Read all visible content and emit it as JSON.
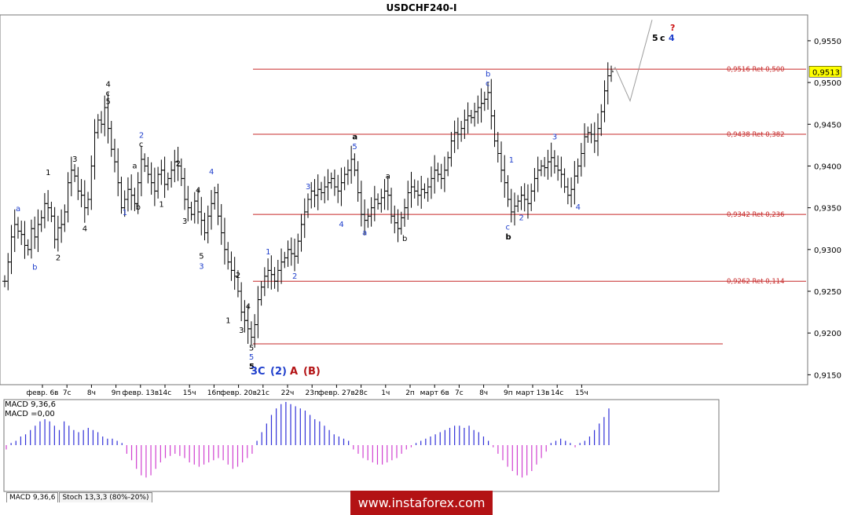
{
  "window": {
    "title": "USDCHF240-I"
  },
  "price_axis": {
    "ticks": [
      "0,9550",
      "0,9500",
      "0,9450",
      "0,9400",
      "0,9350",
      "0,9300",
      "0,9250",
      "0,9200",
      "0,9150"
    ],
    "current_price": "0,9513"
  },
  "time_axis": {
    "labels": [
      "февр. 6в",
      "7с",
      "8ч",
      "9п",
      "февр. 13в",
      "14с",
      "15ч",
      "16п",
      "февр. 20в",
      "21с",
      "22ч",
      "23п",
      "февр. 27в",
      "28с",
      "1ч",
      "2п",
      "март 6в",
      "7с",
      "8ч",
      "9п",
      "март 13в",
      "14с",
      "15ч"
    ]
  },
  "fib_levels": [
    {
      "label": "0,9516 Ret 0,500",
      "price": 0.9516
    },
    {
      "label": "0,9438 Ret 0,382",
      "price": 0.9438
    },
    {
      "label": "0,9342 Ret 0,236",
      "price": 0.9342
    },
    {
      "label": "0,9262 Ret 0,114",
      "price": 0.9262
    }
  ],
  "base_line": {
    "price": 0.9187
  },
  "wave_labels": [
    {
      "text": "a",
      "bar": 4,
      "price": 0.9346,
      "color": "#1f3fcc"
    },
    {
      "text": "b",
      "bar": 9,
      "price": 0.9276,
      "color": "#1f3fcc"
    },
    {
      "text": "1",
      "bar": 13,
      "price": 0.9389,
      "color": "#000"
    },
    {
      "text": "2",
      "bar": 16,
      "price": 0.9287,
      "color": "#000"
    },
    {
      "text": "3",
      "bar": 21,
      "price": 0.9405,
      "color": "#000"
    },
    {
      "text": "4",
      "bar": 24,
      "price": 0.9322,
      "color": "#000"
    },
    {
      "text": "4",
      "bar": 31,
      "price": 0.9495,
      "color": "#000"
    },
    {
      "text": "c",
      "bar": 31,
      "price": 0.9484,
      "color": "#000"
    },
    {
      "text": "5",
      "bar": 31,
      "price": 0.9474,
      "color": "#000"
    },
    {
      "text": "1",
      "bar": 36,
      "price": 0.9341,
      "color": "#1f3fcc"
    },
    {
      "text": "2",
      "bar": 41,
      "price": 0.9434,
      "color": "#1f3fcc"
    },
    {
      "text": "c",
      "bar": 41,
      "price": 0.9423,
      "color": "#000"
    },
    {
      "text": "a",
      "bar": 39,
      "price": 0.9397,
      "color": "#000"
    },
    {
      "text": "b",
      "bar": 40,
      "price": 0.9348,
      "color": "#000"
    },
    {
      "text": "1",
      "bar": 47,
      "price": 0.9351,
      "color": "#000"
    },
    {
      "text": "2",
      "bar": 52,
      "price": 0.94,
      "color": "#000"
    },
    {
      "text": "4",
      "bar": 58,
      "price": 0.9368,
      "color": "#000"
    },
    {
      "text": "3",
      "bar": 54,
      "price": 0.9331,
      "color": "#000"
    },
    {
      "text": "4",
      "bar": 62,
      "price": 0.939,
      "color": "#1f3fcc"
    },
    {
      "text": "5",
      "bar": 59,
      "price": 0.9289,
      "color": "#000"
    },
    {
      "text": "3",
      "bar": 59,
      "price": 0.9277,
      "color": "#1f3fcc"
    },
    {
      "text": "2",
      "bar": 70,
      "price": 0.9266,
      "color": "#000"
    },
    {
      "text": "1",
      "bar": 67,
      "price": 0.9212,
      "color": "#000"
    },
    {
      "text": "3",
      "bar": 71,
      "price": 0.92,
      "color": "#000"
    },
    {
      "text": "4",
      "bar": 73,
      "price": 0.9229,
      "color": "#000"
    },
    {
      "text": "5",
      "bar": 74,
      "price": 0.9179,
      "color": "#000"
    },
    {
      "text": "5",
      "bar": 74,
      "price": 0.9168,
      "color": "#1f3fcc"
    },
    {
      "text": "5",
      "bar": 74,
      "price": 0.9157,
      "color": "#000",
      "bold": true
    },
    {
      "text": "1",
      "bar": 79,
      "price": 0.9294,
      "color": "#1f3fcc"
    },
    {
      "text": "2",
      "bar": 87,
      "price": 0.9265,
      "color": "#1f3fcc"
    },
    {
      "text": "3",
      "bar": 91,
      "price": 0.9372,
      "color": "#1f3fcc"
    },
    {
      "text": "4",
      "bar": 101,
      "price": 0.9327,
      "color": "#1f3fcc"
    },
    {
      "text": "a",
      "bar": 105,
      "price": 0.9432,
      "color": "#000",
      "bold": true
    },
    {
      "text": "5",
      "bar": 105,
      "price": 0.942,
      "color": "#1f3fcc"
    },
    {
      "text": "a",
      "bar": 108,
      "price": 0.9317,
      "color": "#1f3fcc"
    },
    {
      "text": "a",
      "bar": 115,
      "price": 0.9385,
      "color": "#000"
    },
    {
      "text": "b",
      "bar": 120,
      "price": 0.931,
      "color": "#000"
    },
    {
      "text": "b",
      "bar": 145,
      "price": 0.9507,
      "color": "#1f3fcc"
    },
    {
      "text": "c",
      "bar": 145,
      "price": 0.9496,
      "color": "#1f3fcc"
    },
    {
      "text": "1",
      "bar": 152,
      "price": 0.9404,
      "color": "#1f3fcc"
    },
    {
      "text": "c",
      "bar": 151,
      "price": 0.9324,
      "color": "#1f3fcc"
    },
    {
      "text": "b",
      "bar": 151,
      "price": 0.9312,
      "color": "#000",
      "bold": true
    },
    {
      "text": "2",
      "bar": 155,
      "price": 0.9335,
      "color": "#1f3fcc"
    },
    {
      "text": "3",
      "bar": 165,
      "price": 0.9432,
      "color": "#1f3fcc"
    },
    {
      "text": "4",
      "bar": 172,
      "price": 0.9348,
      "color": "#1f3fcc"
    }
  ],
  "header_labels": [
    {
      "text": "5",
      "color": "#000"
    },
    {
      "text": "c",
      "color": "#000"
    },
    {
      "text": "4",
      "color": "#1f3fcc"
    },
    {
      "text": "?",
      "color": "#cc1111"
    }
  ],
  "bottom_labels": [
    {
      "text": "3",
      "color": "#1f3fcc"
    },
    {
      "text": "C",
      "color": "#1f3fcc"
    },
    {
      "text": "(2)",
      "color": "#1f3fcc"
    },
    {
      "text": "A",
      "color": "#b31214"
    },
    {
      "text": "(B)",
      "color": "#b31214"
    }
  ],
  "macd": {
    "title": "MACD 9,36,6",
    "value": "MACD =0,00"
  },
  "tabs": [
    "MACD 9,36,6",
    "Stoch 13,3,3 (80%-20%)"
  ],
  "watermark": "www.instaforex.com",
  "chart_data": {
    "type": "candlestick",
    "title": "USDCHF240-I",
    "ylim": [
      0.914,
      0.958
    ],
    "bars_start": 0.9262,
    "close_path": [
      0.9262,
      0.9285,
      0.9315,
      0.933,
      0.9322,
      0.9318,
      0.9305,
      0.93,
      0.9325,
      0.9315,
      0.933,
      0.9338,
      0.9355,
      0.935,
      0.934,
      0.9312,
      0.9326,
      0.933,
      0.9345,
      0.938,
      0.9395,
      0.9388,
      0.937,
      0.9365,
      0.935,
      0.936,
      0.94,
      0.944,
      0.9455,
      0.945,
      0.947,
      0.9445,
      0.942,
      0.9405,
      0.938,
      0.935,
      0.936,
      0.9372,
      0.9365,
      0.9355,
      0.938,
      0.9408,
      0.94,
      0.939,
      0.938,
      0.937,
      0.939,
      0.9395,
      0.9378,
      0.9385,
      0.9395,
      0.9405,
      0.94,
      0.9385,
      0.936,
      0.935,
      0.9342,
      0.9358,
      0.9345,
      0.9335,
      0.932,
      0.934,
      0.9355,
      0.9368,
      0.934,
      0.932,
      0.93,
      0.9285,
      0.9275,
      0.9268,
      0.925,
      0.9225,
      0.9215,
      0.9205,
      0.9195,
      0.921,
      0.924,
      0.9255,
      0.9268,
      0.9275,
      0.927,
      0.9262,
      0.9275,
      0.9285,
      0.929,
      0.93,
      0.9295,
      0.9292,
      0.931,
      0.933,
      0.9345,
      0.936,
      0.937,
      0.9365,
      0.9372,
      0.9368,
      0.9375,
      0.938,
      0.9385,
      0.9375,
      0.937,
      0.938,
      0.939,
      0.9395,
      0.9408,
      0.9395,
      0.9368,
      0.9342,
      0.9335,
      0.934,
      0.935,
      0.936,
      0.9355,
      0.9362,
      0.937,
      0.9365,
      0.934,
      0.9332,
      0.9325,
      0.9338,
      0.935,
      0.9368,
      0.9375,
      0.937,
      0.9365,
      0.9372,
      0.9368,
      0.9375,
      0.9385,
      0.9395,
      0.939,
      0.9385,
      0.9395,
      0.941,
      0.943,
      0.944,
      0.9438,
      0.9445,
      0.9455,
      0.946,
      0.9458,
      0.9465,
      0.947,
      0.9475,
      0.948,
      0.9488,
      0.946,
      0.943,
      0.9415,
      0.9395,
      0.938,
      0.936,
      0.9345,
      0.9352,
      0.9358,
      0.9365,
      0.936,
      0.9355,
      0.937,
      0.9385,
      0.9395,
      0.94,
      0.9398,
      0.9405,
      0.941,
      0.94,
      0.9395,
      0.939,
      0.9375,
      0.9365,
      0.9372,
      0.9388,
      0.94,
      0.9415,
      0.9435,
      0.944,
      0.9438,
      0.943,
      0.9445,
      0.9465,
      0.949,
      0.9508,
      0.9513
    ],
    "forecast": [
      {
        "label": "b",
        "price": 0.9518
      },
      {
        "label": "c",
        "price": 0.9478
      },
      {
        "label": "end",
        "price": 0.9575
      }
    ],
    "macd_values": [
      -0.1,
      0.05,
      0.1,
      0.2,
      0.25,
      0.35,
      0.45,
      0.55,
      0.6,
      0.55,
      0.45,
      0.35,
      0.55,
      0.45,
      0.35,
      0.3,
      0.35,
      0.4,
      0.35,
      0.3,
      0.2,
      0.15,
      0.15,
      0.1,
      0.05,
      -0.2,
      -0.35,
      -0.55,
      -0.7,
      -0.75,
      -0.7,
      -0.55,
      -0.4,
      -0.3,
      -0.25,
      -0.2,
      -0.25,
      -0.3,
      -0.4,
      -0.45,
      -0.5,
      -0.45,
      -0.4,
      -0.35,
      -0.3,
      -0.35,
      -0.45,
      -0.55,
      -0.5,
      -0.4,
      -0.3,
      -0.2,
      0.1,
      0.3,
      0.5,
      0.7,
      0.85,
      0.95,
      1.0,
      0.95,
      0.9,
      0.85,
      0.8,
      0.7,
      0.6,
      0.55,
      0.45,
      0.35,
      0.25,
      0.2,
      0.15,
      0.1,
      -0.1,
      -0.2,
      -0.3,
      -0.35,
      -0.4,
      -0.45,
      -0.45,
      -0.4,
      -0.35,
      -0.3,
      -0.2,
      -0.1,
      -0.05,
      0.05,
      0.1,
      0.15,
      0.2,
      0.25,
      0.3,
      0.35,
      0.4,
      0.45,
      0.45,
      0.4,
      0.45,
      0.35,
      0.3,
      0.2,
      0.1,
      -0.05,
      -0.2,
      -0.35,
      -0.5,
      -0.6,
      -0.7,
      -0.75,
      -0.7,
      -0.6,
      -0.45,
      -0.3,
      -0.15,
      0.05,
      0.1,
      0.15,
      0.1,
      0.05,
      -0.05,
      0.05,
      0.1,
      0.2,
      0.35,
      0.5,
      0.65,
      0.85
    ]
  }
}
